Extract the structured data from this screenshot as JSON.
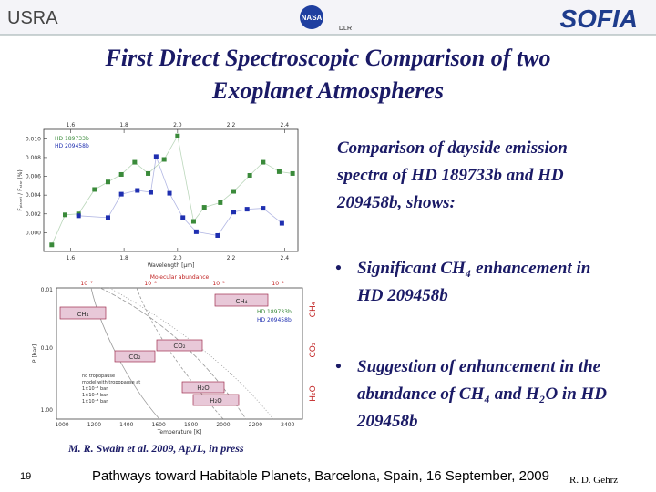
{
  "header": {
    "logo_left": "USRA",
    "logo_center": "NASA",
    "logo_center_2": "DLR",
    "logo_right": "SOFIA"
  },
  "title": "First Direct Spectroscopic Comparison of two Exoplanet Atmospheres",
  "body": {
    "intro": "Comparison of dayside emission spectra of HD 189733b and HD 209458b, shows:",
    "bullets": [
      "Significant CH₄ enhancement in HD 209458b",
      "Suggestion of enhancement in the abundance of CH₄ and H₂O in HD 209458b"
    ]
  },
  "citation": "M. R. Swain et al. 2009, ApJL, in press",
  "footer": {
    "page": "19",
    "text": "Pathways toward Habitable Planets, Barcelona, Spain, 16 September, 2009",
    "author": "R. D. Gehrz"
  },
  "chart_data": {
    "type": "scatter",
    "x_label": "Wavelength [μm]",
    "y_label": "Fₚₗₐₙₑₜ / Fₛₜₐᵣ (%)",
    "xlim": [
      1.5,
      2.45
    ],
    "ylim": [
      -0.002,
      0.011
    ],
    "xticks": [
      1.6,
      1.8,
      {
        "value": 2.0,
        "label": "2.0"
      },
      2.2,
      2.4
    ],
    "yticks": [
      {
        "value": 0,
        "label": "0.000"
      },
      0.002,
      0.004,
      0.006,
      0.008,
      {
        "value": 0.01,
        "label": "0.010"
      }
    ],
    "legend": "upper left",
    "series": [
      {
        "name": "HD 189733b",
        "color": "#3a8a3a",
        "x": [
          1.53,
          1.58,
          1.63,
          1.69,
          1.74,
          1.79,
          1.84,
          1.89,
          1.95,
          2.0,
          2.06,
          2.1,
          2.16,
          2.21,
          2.27,
          2.32,
          2.38,
          2.43
        ],
        "values": [
          -0.0013,
          0.0019,
          0.002,
          0.0046,
          0.0054,
          0.0062,
          0.0075,
          0.0063,
          0.0078,
          0.0103,
          0.0012,
          0.0027,
          0.0032,
          0.0044,
          0.0061,
          0.0075,
          0.0065,
          0.0063
        ]
      },
      {
        "name": "HD 209458b",
        "color": "#1f2fb0",
        "x": [
          1.63,
          1.74,
          1.79,
          1.85,
          1.9,
          1.92,
          1.97,
          2.02,
          2.07,
          2.15,
          2.21,
          2.26,
          2.32,
          2.39
        ],
        "values": [
          0.0018,
          0.0016,
          0.0041,
          0.0045,
          0.0043,
          0.0081,
          0.0042,
          0.0016,
          0.0001,
          -0.0003,
          0.0022,
          0.0025,
          0.0026,
          0.001
        ]
      }
    ]
  },
  "figure": {
    "top_label": "Molecular abundance",
    "top_ticks": [
      "10⁻⁷",
      "10⁻⁶",
      "10⁻⁵",
      "10⁻⁴"
    ],
    "y_label": "P [bar]",
    "y_ticks": [
      "0.01",
      "0.10",
      "1.00"
    ],
    "x_label": "Temperature [K]",
    "x_ticks": [
      "1000",
      "1200",
      "1400",
      "1600",
      "1800",
      "2000",
      "2200",
      "2400"
    ],
    "side_labels": [
      "CH₄",
      "CO₂",
      "H₂O"
    ],
    "boxes": [
      "CH₄",
      "CH₄",
      "CO₂",
      "CO₂",
      "H₂O",
      "H₂O"
    ],
    "legend": [
      "HD 189733b",
      "HD 209458b"
    ],
    "model_legend": [
      "no tropopause",
      "model with tropopause at",
      "1×10⁻² bar",
      "1×10⁻³ bar",
      "1×10⁻⁴ bar"
    ]
  }
}
